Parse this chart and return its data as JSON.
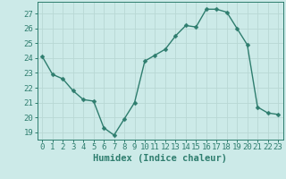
{
  "x": [
    0,
    1,
    2,
    3,
    4,
    5,
    6,
    7,
    8,
    9,
    10,
    11,
    12,
    13,
    14,
    15,
    16,
    17,
    18,
    19,
    20,
    21,
    22,
    23
  ],
  "y": [
    24.1,
    22.9,
    22.6,
    21.8,
    21.2,
    21.1,
    19.3,
    18.8,
    19.9,
    21.0,
    23.8,
    24.2,
    24.6,
    25.5,
    26.2,
    26.1,
    27.3,
    27.3,
    27.1,
    26.0,
    24.9,
    20.7,
    20.3,
    20.2
  ],
  "line_color": "#2e7d6e",
  "marker_color": "#2e7d6e",
  "bg_color": "#cceae8",
  "grid_color": "#b8d8d4",
  "xlabel": "Humidex (Indice chaleur)",
  "ylim": [
    18.5,
    27.8
  ],
  "yticks": [
    19,
    20,
    21,
    22,
    23,
    24,
    25,
    26,
    27
  ],
  "xlim": [
    -0.5,
    23.5
  ],
  "xticks": [
    0,
    1,
    2,
    3,
    4,
    5,
    6,
    7,
    8,
    9,
    10,
    11,
    12,
    13,
    14,
    15,
    16,
    17,
    18,
    19,
    20,
    21,
    22,
    23
  ],
  "tick_fontsize": 6.5,
  "xlabel_fontsize": 7.5,
  "line_width": 1.0,
  "marker_size": 2.5
}
